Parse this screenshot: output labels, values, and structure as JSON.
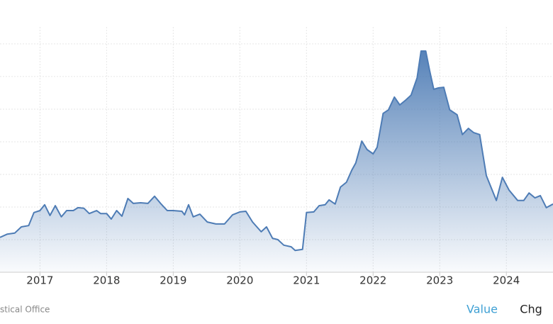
{
  "chart_data": {
    "type": "area",
    "x": [
      2016.4,
      2016.51,
      2016.62,
      2016.72,
      2016.83,
      2016.91,
      2017.0,
      2017.07,
      2017.15,
      2017.23,
      2017.32,
      2017.4,
      2017.5,
      2017.57,
      2017.66,
      2017.74,
      2017.85,
      2017.91,
      2018.0,
      2018.07,
      2018.15,
      2018.23,
      2018.32,
      2018.4,
      2018.51,
      2018.62,
      2018.72,
      2018.81,
      2018.91,
      2019.0,
      2019.13,
      2019.17,
      2019.23,
      2019.3,
      2019.4,
      2019.51,
      2019.64,
      2019.77,
      2019.89,
      2020.0,
      2020.09,
      2020.19,
      2020.32,
      2020.4,
      2020.49,
      2020.57,
      2020.66,
      2020.77,
      2020.83,
      2020.94,
      2021.0,
      2021.11,
      2021.19,
      2021.28,
      2021.34,
      2021.43,
      2021.51,
      2021.6,
      2021.68,
      2021.74,
      2021.83,
      2021.91,
      2022.0,
      2022.06,
      2022.15,
      2022.23,
      2022.32,
      2022.4,
      2022.49,
      2022.57,
      2022.66,
      2022.72,
      2022.79,
      2022.85,
      2022.91,
      2022.98,
      2023.06,
      2023.15,
      2023.26,
      2023.34,
      2023.43,
      2023.51,
      2023.6,
      2023.7,
      2023.85,
      2023.94,
      2024.04,
      2024.17,
      2024.26,
      2024.34,
      2024.43,
      2024.51,
      2024.6,
      2024.7
    ],
    "values": [
      1.07,
      1.17,
      1.2,
      1.39,
      1.43,
      1.83,
      1.89,
      2.07,
      1.74,
      2.04,
      1.7,
      1.89,
      1.89,
      1.98,
      1.96,
      1.8,
      1.89,
      1.8,
      1.8,
      1.63,
      1.89,
      1.72,
      2.26,
      2.11,
      2.13,
      2.11,
      2.33,
      2.11,
      1.89,
      1.89,
      1.87,
      1.76,
      2.07,
      1.7,
      1.78,
      1.54,
      1.48,
      1.48,
      1.76,
      1.85,
      1.87,
      1.54,
      1.24,
      1.39,
      1.04,
      1.0,
      0.83,
      0.78,
      0.67,
      0.7,
      1.83,
      1.85,
      2.04,
      2.07,
      2.22,
      2.09,
      2.61,
      2.76,
      3.13,
      3.35,
      4.02,
      3.76,
      3.63,
      3.83,
      4.87,
      4.98,
      5.37,
      5.13,
      5.28,
      5.43,
      5.96,
      6.78,
      6.78,
      6.17,
      5.61,
      5.65,
      5.67,
      4.98,
      4.83,
      4.22,
      4.41,
      4.28,
      4.22,
      2.96,
      2.2,
      2.91,
      2.52,
      2.2,
      2.2,
      2.43,
      2.28,
      2.35,
      1.98,
      2.09
    ],
    "color": "#4e7cb5",
    "xlim": [
      2016.4,
      2024.7
    ],
    "xticks": [
      2017,
      2018,
      2019,
      2020,
      2021,
      2022,
      2023,
      2024
    ],
    "ylim": [
      0,
      7.52
    ],
    "yticks": [
      1,
      2,
      3,
      4,
      5,
      6,
      7
    ],
    "grid": true,
    "source": "stical Office",
    "tabs": [
      "Value",
      "Chg"
    ]
  }
}
